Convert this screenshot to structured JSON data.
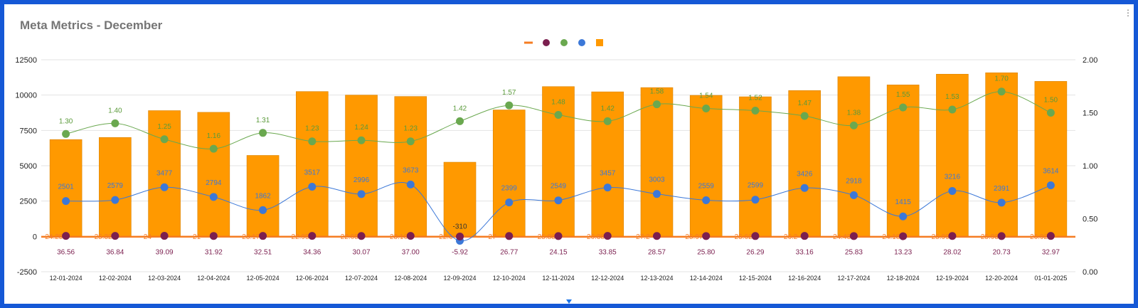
{
  "page": {
    "title": "Meta Metrics - December",
    "menu_icon": "more-vert-icon"
  },
  "chart_data": {
    "type": "combo",
    "title": "Meta Metrics - December",
    "categories": [
      "12-01-2024",
      "12-02-2024",
      "12-03-2024",
      "12-04-2024",
      "12-05-2024",
      "12-06-2024",
      "12-07-2024",
      "12-08-2024",
      "12-09-2024",
      "12-10-2024",
      "12-11-2024",
      "12-12-2024",
      "12-13-2024",
      "12-14-2024",
      "12-15-2024",
      "12-16-2024",
      "12-17-2024",
      "12-18-2024",
      "12-19-2024",
      "12-20-2024",
      "01-01-2025"
    ],
    "left_axis": {
      "min": -2500,
      "max": 12500,
      "ticks": [
        "-2500",
        "0",
        "2500",
        "5000",
        "7500",
        "10000",
        "12500"
      ]
    },
    "right_axis": {
      "min": 0,
      "max": 2,
      "ticks": [
        "0.00",
        "0.50",
        "1.00",
        "1.50",
        "2.00"
      ]
    },
    "legend_position": "top-center",
    "series": [
      {
        "name": "",
        "type": "line",
        "axis": "left",
        "color": "#f57c22",
        "values": [
          -24.25,
          -25.32,
          -24,
          -21,
          -23.17,
          -22.95,
          -22.65,
          -23.16,
          -22.6,
          -27,
          -25.88,
          -26.38,
          -27.2,
          -25.97,
          -25.62,
          -26.2,
          -24.43,
          -24.18,
          -25.99,
          -25.93,
          -26.92
        ],
        "labels": [
          "-24.25",
          "-25.32",
          "-24",
          "-21",
          "-23.17",
          "-22.95",
          "-22.65",
          "-23.16",
          "-22.6",
          "-27",
          "-25.88",
          "-26.38",
          "-27.2",
          "-25.97",
          "-25.62",
          "-26.2",
          "-24.43",
          "-24.18",
          "-25.99",
          "-25.93",
          "-26.92"
        ]
      },
      {
        "name": "",
        "type": "scatter",
        "axis": "left",
        "color": "#7b1f4f",
        "values": [
          36.56,
          36.84,
          39.09,
          31.92,
          32.51,
          34.36,
          30.07,
          37.0,
          -5.92,
          26.77,
          24.15,
          33.85,
          28.57,
          25.8,
          26.29,
          33.16,
          25.83,
          13.23,
          28.02,
          20.73,
          32.97
        ],
        "labels": [
          "36.56",
          "36.84",
          "39.09",
          "31.92",
          "32.51",
          "34.36",
          "30.07",
          "37.00",
          "-5.92",
          "26.77",
          "24.15",
          "33.85",
          "28.57",
          "25.80",
          "26.29",
          "33.16",
          "25.83",
          "13.23",
          "28.02",
          "20.73",
          "32.97"
        ]
      },
      {
        "name": "",
        "type": "line",
        "axis": "right",
        "color": "#6aa84f",
        "values": [
          1.3,
          1.4,
          1.25,
          1.16,
          1.31,
          1.23,
          1.24,
          1.23,
          1.42,
          1.57,
          1.48,
          1.42,
          1.58,
          1.54,
          1.52,
          1.47,
          1.38,
          1.55,
          1.53,
          1.7,
          1.5
        ],
        "labels": [
          "1.30",
          "1.40",
          "1.25",
          "1.16",
          "1.31",
          "1.23",
          "1.24",
          "1.23",
          "1.42",
          "1.57",
          "1.48",
          "1.42",
          "1.58",
          "1.54",
          "1.52",
          "1.47",
          "1.38",
          "1.55",
          "1.53",
          "1.70",
          "1.50"
        ]
      },
      {
        "name": "",
        "type": "line",
        "axis": "left",
        "color": "#3c78d8",
        "values": [
          2501,
          2579,
          3477,
          2794,
          1862,
          3517,
          2996,
          3673,
          -310,
          2399,
          2549,
          3457,
          3003,
          2559,
          2599,
          3426,
          2918,
          1415,
          3216,
          2391,
          3614
        ],
        "labels": [
          "2501",
          "2579",
          "3477",
          "2794",
          "1862",
          "3517",
          "2996",
          "3673",
          "-310",
          "2399",
          "2549",
          "3457",
          "3003",
          "2559",
          "2599",
          "3426",
          "2918",
          "1415",
          "3216",
          "2391",
          "3614"
        ]
      },
      {
        "name": "",
        "type": "bar",
        "axis": "left",
        "color": "#ff9900",
        "values": [
          6850,
          7000,
          8900,
          8780,
          5730,
          10250,
          10000,
          9900,
          5250,
          8950,
          10600,
          10230,
          10530,
          9980,
          9880,
          10320,
          11300,
          10720,
          11480,
          11580,
          10970
        ]
      }
    ]
  }
}
